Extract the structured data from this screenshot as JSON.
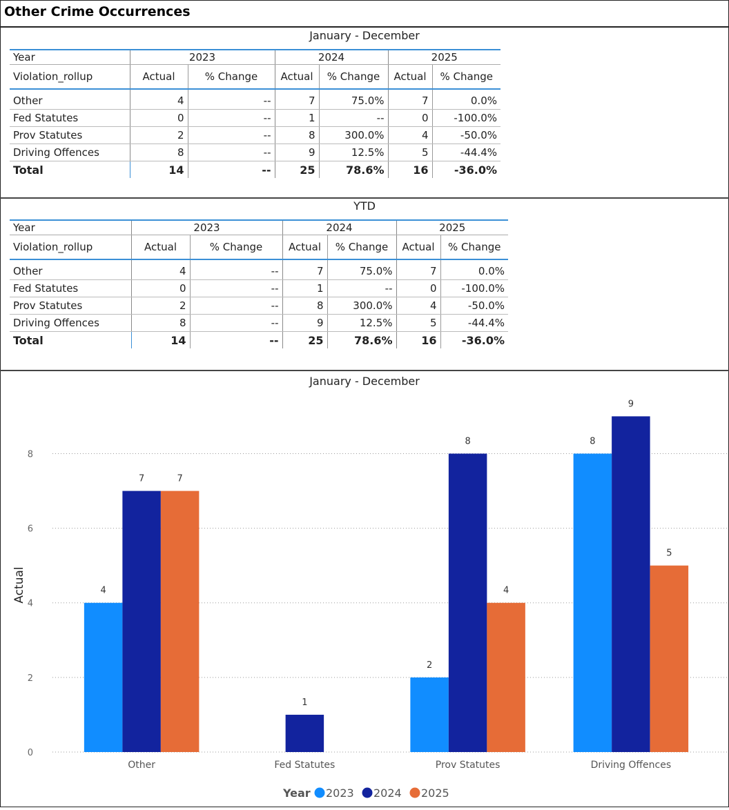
{
  "report": {
    "title": "Other Crime Occurrences"
  },
  "table_annual": {
    "title": "January - December",
    "year_label": "Year",
    "row_header": "Violation_rollup",
    "years": [
      "2023",
      "2024",
      "2025"
    ],
    "col_actual": "Actual",
    "col_change": "% Change",
    "rows": [
      {
        "label": "Other",
        "cells": [
          "4",
          "--",
          "7",
          "75.0%",
          "7",
          "0.0%"
        ]
      },
      {
        "label": "Fed Statutes",
        "cells": [
          "0",
          "--",
          "1",
          "--",
          "0",
          "-100.0%"
        ]
      },
      {
        "label": "Prov Statutes",
        "cells": [
          "2",
          "--",
          "8",
          "300.0%",
          "4",
          "-50.0%"
        ]
      },
      {
        "label": "Driving Offences",
        "cells": [
          "8",
          "--",
          "9",
          "12.5%",
          "5",
          "-44.4%"
        ]
      }
    ],
    "total": {
      "label": "Total",
      "cells": [
        "14",
        "--",
        "25",
        "78.6%",
        "16",
        "-36.0%"
      ]
    }
  },
  "table_ytd": {
    "title": "YTD",
    "year_label": "Year",
    "row_header": "Violation_rollup",
    "years": [
      "2023",
      "2024",
      "2025"
    ],
    "col_actual": "Actual",
    "col_change": "% Change",
    "rows": [
      {
        "label": "Other",
        "cells": [
          "4",
          "--",
          "7",
          "75.0%",
          "7",
          "0.0%"
        ]
      },
      {
        "label": "Fed Statutes",
        "cells": [
          "0",
          "--",
          "1",
          "--",
          "0",
          "-100.0%"
        ]
      },
      {
        "label": "Prov Statutes",
        "cells": [
          "2",
          "--",
          "8",
          "300.0%",
          "4",
          "-50.0%"
        ]
      },
      {
        "label": "Driving Offences",
        "cells": [
          "8",
          "--",
          "9",
          "12.5%",
          "5",
          "-44.4%"
        ]
      }
    ],
    "total": {
      "label": "Total",
      "cells": [
        "14",
        "--",
        "25",
        "78.6%",
        "16",
        "-36.0%"
      ]
    }
  },
  "chart_data": {
    "type": "bar",
    "title": "January - December",
    "xlabel": "",
    "ylabel": "Actual",
    "categories": [
      "Other",
      "Fed Statutes",
      "Prov Statutes",
      "Driving Offences"
    ],
    "series": [
      {
        "name": "2023",
        "color": "#118DFF",
        "values": [
          4,
          0,
          2,
          8
        ]
      },
      {
        "name": "2024",
        "color": "#12239E",
        "values": [
          7,
          1,
          8,
          9
        ]
      },
      {
        "name": "2025",
        "color": "#E66C37",
        "values": [
          7,
          0,
          4,
          5
        ]
      }
    ],
    "ylim": [
      0,
      9.5
    ],
    "yticks": [
      0,
      2,
      4,
      6,
      8
    ],
    "grid": true,
    "legend_title": "Year",
    "legend_position": "bottom-center"
  }
}
